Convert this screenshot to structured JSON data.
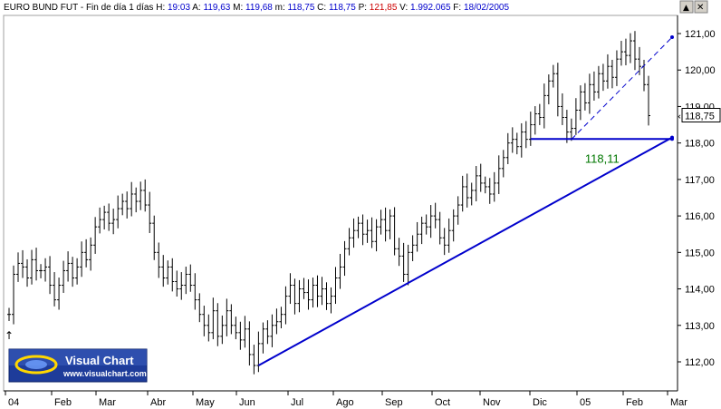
{
  "header": {
    "instrument": "EURO BUND FUT",
    "timeframe": "Fin de día 1 días",
    "fields": [
      {
        "label": "H:",
        "value": "19:03",
        "color": "#0000cc"
      },
      {
        "label": "A:",
        "value": "119,63",
        "color": "#0000cc"
      },
      {
        "label": "M:",
        "value": "119,68",
        "color": "#0000cc"
      },
      {
        "label": "m:",
        "value": "118,75",
        "color": "#0000cc"
      },
      {
        "label": "C:",
        "value": "118,75",
        "color": "#0000cc"
      },
      {
        "label": "P:",
        "value": "121,85",
        "color": "#cc0000"
      },
      {
        "label": "V:",
        "value": "1.992.065",
        "color": "#0000cc"
      },
      {
        "label": "F:",
        "value": "18/02/2005",
        "color": "#0000cc"
      }
    ]
  },
  "window_buttons": [
    "▲",
    "✕"
  ],
  "logo": {
    "name": "Visual Chart",
    "url": "www.visualchart.com"
  },
  "last_price_label": "118,75",
  "colors": {
    "bars": "#000000",
    "trendline": "#0000cc",
    "annotation": "#007700",
    "grid": "#e8e8e8"
  },
  "chart_data": {
    "type": "ohlc",
    "grid": false,
    "ylim": [
      111.5,
      121.3
    ],
    "yticks": [
      "121,00",
      "120,00",
      "119,00",
      "118,00",
      "117,00",
      "116,00",
      "115,00",
      "114,00",
      "113,00",
      "112,00"
    ],
    "ytick_values": [
      121,
      120,
      119,
      118,
      117,
      116,
      115,
      114,
      113,
      112
    ],
    "xlabels": [
      "04",
      "Feb",
      "Mar",
      "Abr",
      "May",
      "Jun",
      "Jul",
      "Ago",
      "Sep",
      "Oct",
      "Nov",
      "Dic",
      "05",
      "Feb",
      "Mar"
    ],
    "closes": [
      113.3,
      114.4,
      114.7,
      114.6,
      114.3,
      114.8,
      114.5,
      114.5,
      114.6,
      114.1,
      113.7,
      114.1,
      114.5,
      114.7,
      114.3,
      114.6,
      115.0,
      114.8,
      115.2,
      115.7,
      115.9,
      116.1,
      115.8,
      115.9,
      116.2,
      116.4,
      116.2,
      116.6,
      116.4,
      116.7,
      116.3,
      115.8,
      115.0,
      114.6,
      114.3,
      114.6,
      114.2,
      114.0,
      114.1,
      114.4,
      114.1,
      113.7,
      113.3,
      113.0,
      112.8,
      113.4,
      112.7,
      113.0,
      113.4,
      113.0,
      112.8,
      112.6,
      112.9,
      112.2,
      111.9,
      112.5,
      112.9,
      112.7,
      113.0,
      113.1,
      113.3,
      113.8,
      114.1,
      113.6,
      114.0,
      113.9,
      113.7,
      114.1,
      113.8,
      114.0,
      113.6,
      113.8,
      114.3,
      114.6,
      115.1,
      115.4,
      115.6,
      115.8,
      115.5,
      115.6,
      115.3,
      115.7,
      115.9,
      115.6,
      116.0,
      115.1,
      114.9,
      114.4,
      115.0,
      115.2,
      115.5,
      115.8,
      115.7,
      116.0,
      115.9,
      115.4,
      115.2,
      115.6,
      116.0,
      116.3,
      116.8,
      116.5,
      116.7,
      117.1,
      116.9,
      116.8,
      116.6,
      116.9,
      117.3,
      117.6,
      118.0,
      118.1,
      117.9,
      118.3,
      118.1,
      118.5,
      118.8,
      118.7,
      119.3,
      119.7,
      119.9,
      119.0,
      118.7,
      118.3,
      118.4,
      118.9,
      119.4,
      119.1,
      119.6,
      119.4,
      119.9,
      119.7,
      120.1,
      119.8,
      120.3,
      120.5,
      120.4,
      120.8,
      120.3,
      120.1,
      119.6,
      118.75
    ],
    "trendlines": [
      {
        "from": [
          55,
          111.9
        ],
        "to": [
          148,
          118.15
        ],
        "style": "solid"
      },
      {
        "from": [
          115,
          118.11
        ],
        "to": [
          148,
          118.11
        ],
        "style": "solid",
        "label": "118,11"
      },
      {
        "from": [
          124,
          118.1
        ],
        "to": [
          148,
          120.9
        ],
        "style": "dashed"
      }
    ],
    "annotations": [
      {
        "text": "118,11",
        "x": 127,
        "y": 117.7
      }
    ]
  }
}
